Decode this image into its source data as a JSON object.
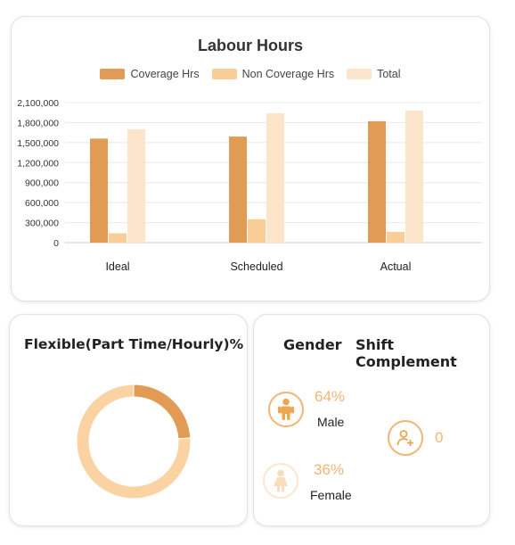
{
  "colors": {
    "coverage": "#e29b55",
    "non_coverage": "#f9cd98",
    "total": "#fde5cc",
    "donut_dark": "#e29b55",
    "donut_light": "#fbd3a3",
    "accent": "#f2b575"
  },
  "chart_data": [
    {
      "type": "bar",
      "title": "Labour Hours",
      "categories": [
        "Ideal",
        "Scheduled",
        "Actual"
      ],
      "series": [
        {
          "name": "Coverage Hrs",
          "values": [
            1560000,
            1590000,
            1820000
          ]
        },
        {
          "name": "Non Coverage Hrs",
          "values": [
            140000,
            350000,
            160000
          ]
        },
        {
          "name": "Total",
          "values": [
            1700000,
            1940000,
            1980000
          ]
        }
      ],
      "yticks": [
        "0",
        "300,000",
        "600,000",
        "900,000",
        "1,200,000",
        "1,500,000",
        "1,800,000",
        "2,100,000"
      ],
      "ylim": [
        0,
        2100000
      ],
      "grid": true,
      "legend": "top"
    },
    {
      "type": "pie",
      "title": "Flexible(Part Time/Hourly)%",
      "slices": [
        {
          "value": 0.24
        },
        {
          "value": 0.76
        }
      ]
    }
  ],
  "gender": {
    "title": "Gender",
    "male": {
      "percent": "64%",
      "label": "Male",
      "icon": "male-person-icon"
    },
    "female": {
      "percent": "36%",
      "label": "Female",
      "icon": "female-person-icon"
    }
  },
  "shift": {
    "title": "Shift Complement",
    "value": "0",
    "icon": "add-user-icon"
  }
}
